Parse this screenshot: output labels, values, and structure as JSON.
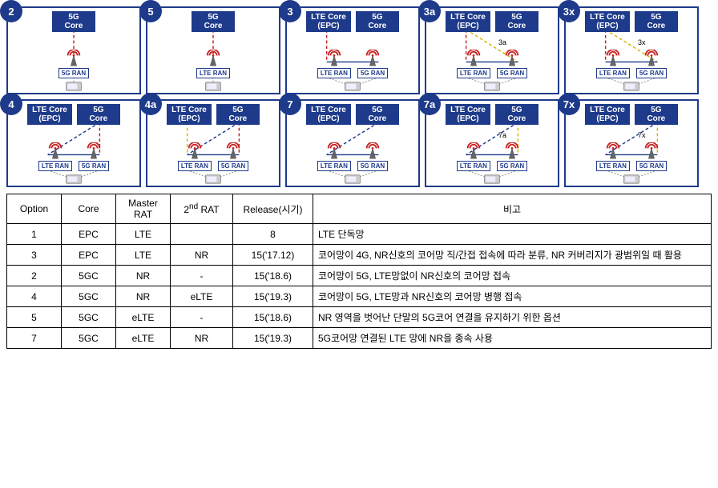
{
  "colors": {
    "navy": "#1e3a8a",
    "red": "#c81e1e",
    "yellow": "#d9b300",
    "blue_line": "#1e3a8a",
    "grey": "#8c8c8c"
  },
  "diagrams": [
    {
      "id": "2",
      "cores": [
        {
          "label": "5G\nCore"
        }
      ],
      "rans": [
        {
          "label": "5G RAN"
        }
      ],
      "lines": [
        {
          "from": "c0",
          "to": "r0",
          "style": "red-dash"
        }
      ],
      "inner": ""
    },
    {
      "id": "5",
      "cores": [
        {
          "label": "5G\nCore"
        }
      ],
      "rans": [
        {
          "label": "LTE RAN"
        }
      ],
      "lines": [
        {
          "from": "c0",
          "to": "r0",
          "style": "red-dash"
        }
      ],
      "inner": ""
    },
    {
      "id": "3",
      "cores": [
        {
          "label": "LTE Core\n(EPC)"
        },
        {
          "label": "5G\nCore"
        }
      ],
      "rans": [
        {
          "label": "LTE RAN"
        },
        {
          "label": "5G RAN"
        }
      ],
      "lines": [
        {
          "from": "c0",
          "to": "r0",
          "style": "red-dash"
        },
        {
          "from": "r0",
          "to": "r1",
          "style": "blue-solid"
        }
      ],
      "inner": ""
    },
    {
      "id": "3a",
      "cores": [
        {
          "label": "LTE Core\n(EPC)"
        },
        {
          "label": "5G\nCore"
        }
      ],
      "rans": [
        {
          "label": "LTE RAN"
        },
        {
          "label": "5G RAN"
        }
      ],
      "lines": [
        {
          "from": "c0",
          "to": "r0",
          "style": "red-dash"
        },
        {
          "from": "c0",
          "to": "r1",
          "style": "yellow-dash"
        },
        {
          "from": "r0",
          "to": "r1",
          "style": "blue-solid"
        }
      ],
      "inner": "3a"
    },
    {
      "id": "3x",
      "cores": [
        {
          "label": "LTE Core\n(EPC)"
        },
        {
          "label": "5G\nCore"
        }
      ],
      "rans": [
        {
          "label": "LTE RAN"
        },
        {
          "label": "5G RAN"
        }
      ],
      "lines": [
        {
          "from": "c0",
          "to": "r0",
          "style": "red-dash"
        },
        {
          "from": "c0",
          "to": "r1",
          "style": "yellow-dash"
        },
        {
          "from": "r0",
          "to": "r1",
          "style": "blue-solid"
        }
      ],
      "inner": "3x"
    },
    {
      "id": "4",
      "cores": [
        {
          "label": "LTE Core\n(EPC)"
        },
        {
          "label": "5G\nCore"
        }
      ],
      "rans": [
        {
          "label": "LTE RAN"
        },
        {
          "label": "5G RAN"
        }
      ],
      "lines": [
        {
          "from": "c1",
          "to": "r0",
          "style": "blue-dash"
        },
        {
          "from": "c1",
          "to": "r1",
          "style": "red-dash"
        },
        {
          "from": "r0",
          "to": "r1",
          "style": "blue-solid"
        }
      ],
      "inner": ""
    },
    {
      "id": "4a",
      "cores": [
        {
          "label": "LTE Core\n(EPC)"
        },
        {
          "label": "5G\nCore"
        }
      ],
      "rans": [
        {
          "label": "LTE RAN"
        },
        {
          "label": "5G RAN"
        }
      ],
      "lines": [
        {
          "from": "c1",
          "to": "r0",
          "style": "blue-dash"
        },
        {
          "from": "c1",
          "to": "r1",
          "style": "red-dash"
        },
        {
          "from": "c0",
          "to": "r0",
          "style": "yellow-dash"
        },
        {
          "from": "r0",
          "to": "r1",
          "style": "blue-solid"
        }
      ],
      "inner": ""
    },
    {
      "id": "7",
      "cores": [
        {
          "label": "LTE Core\n(EPC)"
        },
        {
          "label": "5G\nCore"
        }
      ],
      "rans": [
        {
          "label": "LTE RAN"
        },
        {
          "label": "5G RAN"
        }
      ],
      "lines": [
        {
          "from": "c1",
          "to": "r0",
          "style": "blue-dash"
        },
        {
          "from": "r0",
          "to": "r1",
          "style": "blue-solid"
        }
      ],
      "inner": ""
    },
    {
      "id": "7a",
      "cores": [
        {
          "label": "LTE Core\n(EPC)"
        },
        {
          "label": "5G\nCore"
        }
      ],
      "rans": [
        {
          "label": "LTE RAN"
        },
        {
          "label": "5G RAN"
        }
      ],
      "lines": [
        {
          "from": "c1",
          "to": "r0",
          "style": "blue-dash"
        },
        {
          "from": "c1",
          "to": "r1",
          "style": "yellow-dash"
        },
        {
          "from": "r0",
          "to": "r1",
          "style": "blue-solid"
        }
      ],
      "inner": "7a"
    },
    {
      "id": "7x",
      "cores": [
        {
          "label": "LTE Core\n(EPC)"
        },
        {
          "label": "5G\nCore"
        }
      ],
      "rans": [
        {
          "label": "LTE RAN"
        },
        {
          "label": "5G RAN"
        }
      ],
      "lines": [
        {
          "from": "c1",
          "to": "r0",
          "style": "blue-dash"
        },
        {
          "from": "c1",
          "to": "r1",
          "style": "yellow-dash"
        },
        {
          "from": "r0",
          "to": "r1",
          "style": "blue-solid"
        }
      ],
      "inner": "7x"
    }
  ],
  "table": {
    "headers": [
      "Option",
      "Core",
      "Master\nRAT",
      "2nd RAT",
      "Release(시기)",
      "비고"
    ],
    "rows": [
      {
        "option": "1",
        "core": "EPC",
        "mrat": "LTE",
        "rat2": "",
        "rel": "8",
        "note": "LTE 단독망"
      },
      {
        "option": "3",
        "core": "EPC",
        "mrat": "LTE",
        "rat2": "NR",
        "rel": "15('17.12)",
        "note": "코어망이 4G, NR신호의 코어망 직/간접 접속에 따라 분류, NR 커버리지가 광범위일 때 활용"
      },
      {
        "option": "2",
        "core": "5GC",
        "mrat": "NR",
        "rat2": "-",
        "rel": "15('18.6)",
        "note": "코어망이 5G, LTE망없이 NR신호의 코어망 접속"
      },
      {
        "option": "4",
        "core": "5GC",
        "mrat": "NR",
        "rat2": "eLTE",
        "rel": "15('19.3)",
        "note": "코어망이 5G, LTE망과 NR신호의 코어망 병행 접속"
      },
      {
        "option": "5",
        "core": "5GC",
        "mrat": "eLTE",
        "rat2": "-",
        "rel": "15('18.6)",
        "note": "NR 영역을 벗어난 단말의 5G코어 연결을 유지하기 위한 옵션"
      },
      {
        "option": "7",
        "core": "5GC",
        "mrat": "eLTE",
        "rat2": "NR",
        "rel": "15('19.3)",
        "note": "5G코어망 연결된 LTE 망에 NR을 종속 사용"
      }
    ]
  }
}
